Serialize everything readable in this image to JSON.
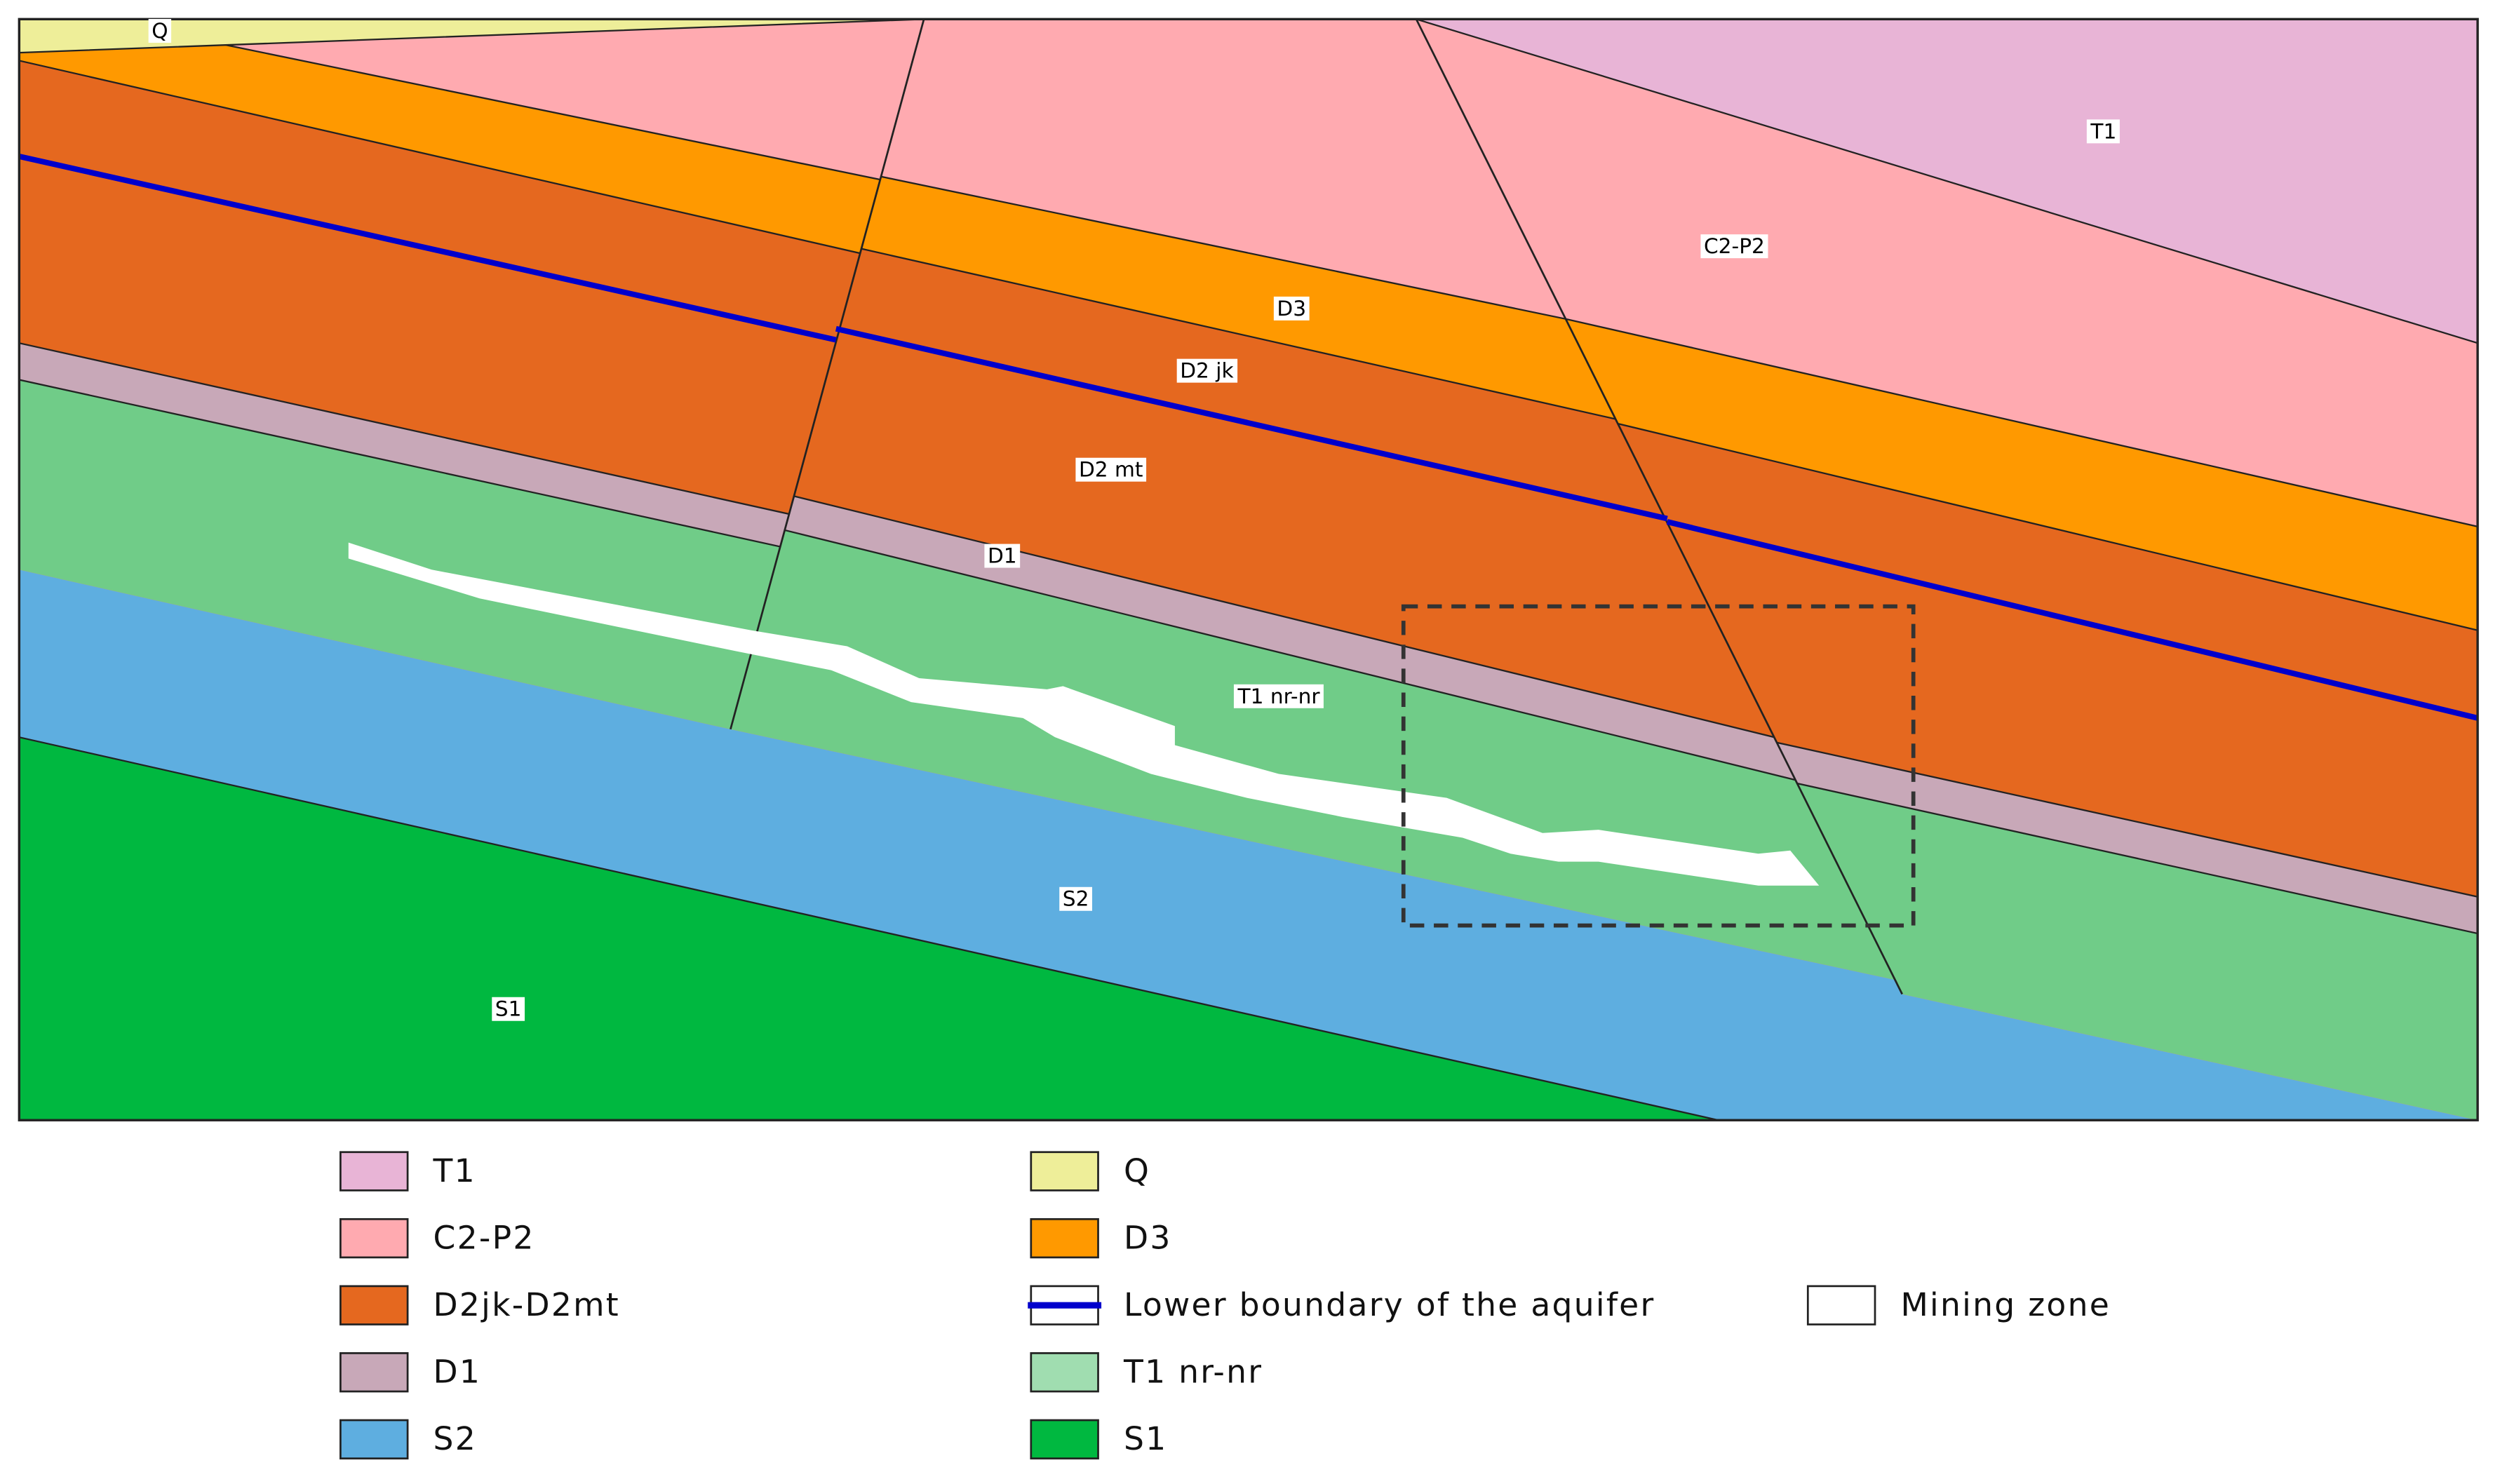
{
  "section_labels": [
    "Q",
    "T1",
    "C2-P2",
    "D3",
    "D2 jk",
    "D2 mt",
    "D1",
    "T1 nr-nr",
    "S2",
    "S1"
  ],
  "legend": [
    {
      "label": "T1"
    },
    {
      "label": "C2-P2"
    },
    {
      "label": "D2jk-D2mt"
    },
    {
      "label": "D1"
    },
    {
      "label": "S2"
    },
    {
      "label": "Q"
    },
    {
      "label": "D3"
    },
    {
      "label": "Lower boundary of the aquifer"
    },
    {
      "label": "T1 nr-nr"
    },
    {
      "label": "S1"
    },
    {
      "label": "Mining zone"
    }
  ]
}
